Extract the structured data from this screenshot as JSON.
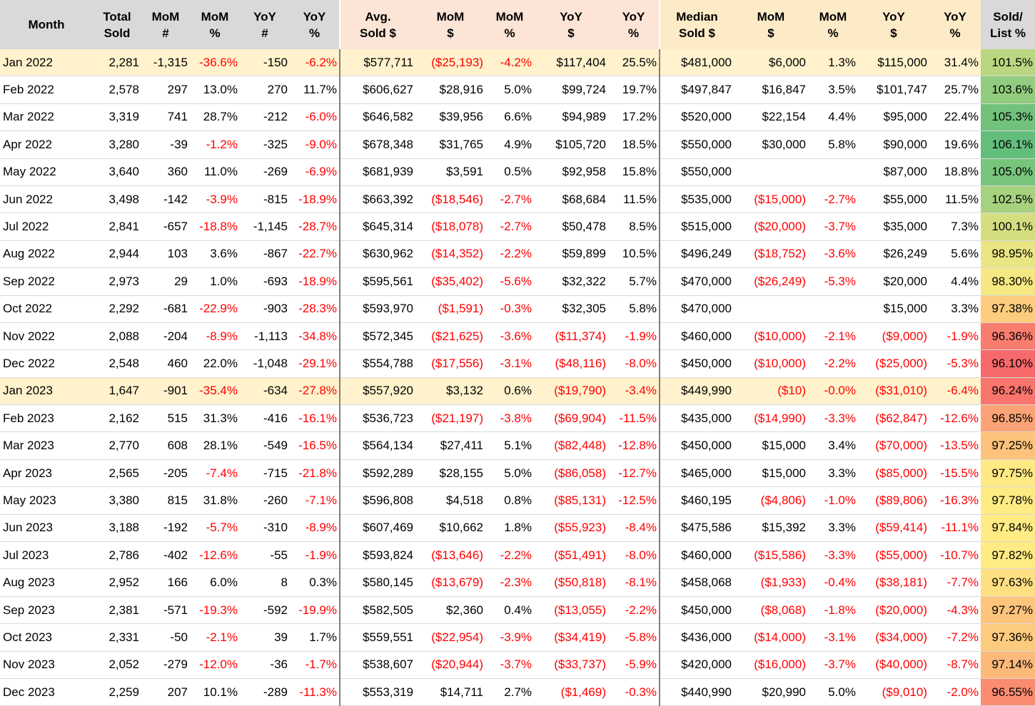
{
  "headers": [
    {
      "label": "Month",
      "group": 1
    },
    {
      "label": "Total\nSold",
      "group": 1
    },
    {
      "label": "MoM\n#",
      "group": 1
    },
    {
      "label": "MoM\n%",
      "group": 1
    },
    {
      "label": "YoY\n#",
      "group": 1
    },
    {
      "label": "YoY\n%",
      "group": 1
    },
    {
      "label": "Avg.\nSold $",
      "group": 2
    },
    {
      "label": "MoM\n$",
      "group": 2
    },
    {
      "label": "MoM\n%",
      "group": 2
    },
    {
      "label": "YoY\n$",
      "group": 2
    },
    {
      "label": "YoY\n%",
      "group": 2
    },
    {
      "label": "Median\nSold $",
      "group": 3
    },
    {
      "label": "MoM\n$",
      "group": 3
    },
    {
      "label": "MoM\n%",
      "group": 3
    },
    {
      "label": "YoY\n$",
      "group": 3
    },
    {
      "label": "YoY\n%",
      "group": 3
    },
    {
      "label": "Sold/\nList %",
      "group": 1
    }
  ],
  "colors": {
    "header_group1": "#d9d9d9",
    "header_group2": "#fce4d6",
    "header_group3": "#fdebc8",
    "january_highlight": "#fff2cc",
    "negative_text": "#ff0000",
    "sold_list_scale": [
      "#f8696b",
      "#ffeb84",
      "#63be7b"
    ]
  },
  "rows": [
    {
      "month": "Jan 2022",
      "total_sold": "2,281",
      "mom_num": "-1,315",
      "mom_pct": "-36.6%",
      "yoy_num": "-150",
      "yoy_pct": "-6.2%",
      "avg_sold": "$577,711",
      "avg_mom": "($25,193)",
      "avg_mom_pct": "-4.2%",
      "avg_yoy": "$117,404",
      "avg_yoy_pct": "25.5%",
      "median_sold": "$481,000",
      "med_mom": "$6,000",
      "med_mom_pct": "1.3%",
      "med_yoy": "$115,000",
      "med_yoy_pct": "31.4%",
      "sold_list": "101.5%",
      "sold_list_value": 101.5,
      "highlight": true
    },
    {
      "month": "Feb 2022",
      "total_sold": "2,578",
      "mom_num": "297",
      "mom_pct": "13.0%",
      "yoy_num": "270",
      "yoy_pct": "11.7%",
      "avg_sold": "$606,627",
      "avg_mom": "$28,916",
      "avg_mom_pct": "5.0%",
      "avg_yoy": "$99,724",
      "avg_yoy_pct": "19.7%",
      "median_sold": "$497,847",
      "med_mom": "$16,847",
      "med_mom_pct": "3.5%",
      "med_yoy": "$101,747",
      "med_yoy_pct": "25.7%",
      "sold_list": "103.6%",
      "sold_list_value": 103.6,
      "highlight": false
    },
    {
      "month": "Mar 2022",
      "total_sold": "3,319",
      "mom_num": "741",
      "mom_pct": "28.7%",
      "yoy_num": "-212",
      "yoy_pct": "-6.0%",
      "avg_sold": "$646,582",
      "avg_mom": "$39,956",
      "avg_mom_pct": "6.6%",
      "avg_yoy": "$94,989",
      "avg_yoy_pct": "17.2%",
      "median_sold": "$520,000",
      "med_mom": "$22,154",
      "med_mom_pct": "4.4%",
      "med_yoy": "$95,000",
      "med_yoy_pct": "22.4%",
      "sold_list": "105.3%",
      "sold_list_value": 105.3,
      "highlight": false
    },
    {
      "month": "Apr 2022",
      "total_sold": "3,280",
      "mom_num": "-39",
      "mom_pct": "-1.2%",
      "yoy_num": "-325",
      "yoy_pct": "-9.0%",
      "avg_sold": "$678,348",
      "avg_mom": "$31,765",
      "avg_mom_pct": "4.9%",
      "avg_yoy": "$105,720",
      "avg_yoy_pct": "18.5%",
      "median_sold": "$550,000",
      "med_mom": "$30,000",
      "med_mom_pct": "5.8%",
      "med_yoy": "$90,000",
      "med_yoy_pct": "19.6%",
      "sold_list": "106.1%",
      "sold_list_value": 106.1,
      "highlight": false
    },
    {
      "month": "May 2022",
      "total_sold": "3,640",
      "mom_num": "360",
      "mom_pct": "11.0%",
      "yoy_num": "-269",
      "yoy_pct": "-6.9%",
      "avg_sold": "$681,939",
      "avg_mom": "$3,591",
      "avg_mom_pct": "0.5%",
      "avg_yoy": "$92,958",
      "avg_yoy_pct": "15.8%",
      "median_sold": "$550,000",
      "med_mom": "",
      "med_mom_pct": "",
      "med_yoy": "$87,000",
      "med_yoy_pct": "18.8%",
      "sold_list": "105.0%",
      "sold_list_value": 105.0,
      "highlight": false
    },
    {
      "month": "Jun 2022",
      "total_sold": "3,498",
      "mom_num": "-142",
      "mom_pct": "-3.9%",
      "yoy_num": "-815",
      "yoy_pct": "-18.9%",
      "avg_sold": "$663,392",
      "avg_mom": "($18,546)",
      "avg_mom_pct": "-2.7%",
      "avg_yoy": "$68,684",
      "avg_yoy_pct": "11.5%",
      "median_sold": "$535,000",
      "med_mom": "($15,000)",
      "med_mom_pct": "-2.7%",
      "med_yoy": "$55,000",
      "med_yoy_pct": "11.5%",
      "sold_list": "102.5%",
      "sold_list_value": 102.5,
      "highlight": false
    },
    {
      "month": "Jul 2022",
      "total_sold": "2,841",
      "mom_num": "-657",
      "mom_pct": "-18.8%",
      "yoy_num": "-1,145",
      "yoy_pct": "-28.7%",
      "avg_sold": "$645,314",
      "avg_mom": "($18,078)",
      "avg_mom_pct": "-2.7%",
      "avg_yoy": "$50,478",
      "avg_yoy_pct": "8.5%",
      "median_sold": "$515,000",
      "med_mom": "($20,000)",
      "med_mom_pct": "-3.7%",
      "med_yoy": "$35,000",
      "med_yoy_pct": "7.3%",
      "sold_list": "100.1%",
      "sold_list_value": 100.1,
      "highlight": false
    },
    {
      "month": "Aug 2022",
      "total_sold": "2,944",
      "mom_num": "103",
      "mom_pct": "3.6%",
      "yoy_num": "-867",
      "yoy_pct": "-22.7%",
      "avg_sold": "$630,962",
      "avg_mom": "($14,352)",
      "avg_mom_pct": "-2.2%",
      "avg_yoy": "$59,899",
      "avg_yoy_pct": "10.5%",
      "median_sold": "$496,249",
      "med_mom": "($18,752)",
      "med_mom_pct": "-3.6%",
      "med_yoy": "$26,249",
      "med_yoy_pct": "5.6%",
      "sold_list": "98.95%",
      "sold_list_value": 98.95,
      "highlight": false
    },
    {
      "month": "Sep 2022",
      "total_sold": "2,973",
      "mom_num": "29",
      "mom_pct": "1.0%",
      "yoy_num": "-693",
      "yoy_pct": "-18.9%",
      "avg_sold": "$595,561",
      "avg_mom": "($35,402)",
      "avg_mom_pct": "-5.6%",
      "avg_yoy": "$32,322",
      "avg_yoy_pct": "5.7%",
      "median_sold": "$470,000",
      "med_mom": "($26,249)",
      "med_mom_pct": "-5.3%",
      "med_yoy": "$20,000",
      "med_yoy_pct": "4.4%",
      "sold_list": "98.30%",
      "sold_list_value": 98.3,
      "highlight": false
    },
    {
      "month": "Oct 2022",
      "total_sold": "2,292",
      "mom_num": "-681",
      "mom_pct": "-22.9%",
      "yoy_num": "-903",
      "yoy_pct": "-28.3%",
      "avg_sold": "$593,970",
      "avg_mom": "($1,591)",
      "avg_mom_pct": "-0.3%",
      "avg_yoy": "$32,305",
      "avg_yoy_pct": "5.8%",
      "median_sold": "$470,000",
      "med_mom": "",
      "med_mom_pct": "",
      "med_yoy": "$15,000",
      "med_yoy_pct": "3.3%",
      "sold_list": "97.38%",
      "sold_list_value": 97.38,
      "highlight": false
    },
    {
      "month": "Nov 2022",
      "total_sold": "2,088",
      "mom_num": "-204",
      "mom_pct": "-8.9%",
      "yoy_num": "-1,113",
      "yoy_pct": "-34.8%",
      "avg_sold": "$572,345",
      "avg_mom": "($21,625)",
      "avg_mom_pct": "-3.6%",
      "avg_yoy": "($11,374)",
      "avg_yoy_pct": "-1.9%",
      "median_sold": "$460,000",
      "med_mom": "($10,000)",
      "med_mom_pct": "-2.1%",
      "med_yoy": "($9,000)",
      "med_yoy_pct": "-1.9%",
      "sold_list": "96.36%",
      "sold_list_value": 96.36,
      "highlight": false
    },
    {
      "month": "Dec 2022",
      "total_sold": "2,548",
      "mom_num": "460",
      "mom_pct": "22.0%",
      "yoy_num": "-1,048",
      "yoy_pct": "-29.1%",
      "avg_sold": "$554,788",
      "avg_mom": "($17,556)",
      "avg_mom_pct": "-3.1%",
      "avg_yoy": "($48,116)",
      "avg_yoy_pct": "-8.0%",
      "median_sold": "$450,000",
      "med_mom": "($10,000)",
      "med_mom_pct": "-2.2%",
      "med_yoy": "($25,000)",
      "med_yoy_pct": "-5.3%",
      "sold_list": "96.10%",
      "sold_list_value": 96.1,
      "highlight": false
    },
    {
      "month": "Jan 2023",
      "total_sold": "1,647",
      "mom_num": "-901",
      "mom_pct": "-35.4%",
      "yoy_num": "-634",
      "yoy_pct": "-27.8%",
      "avg_sold": "$557,920",
      "avg_mom": "$3,132",
      "avg_mom_pct": "0.6%",
      "avg_yoy": "($19,790)",
      "avg_yoy_pct": "-3.4%",
      "median_sold": "$449,990",
      "med_mom": "($10)",
      "med_mom_pct": "-0.0%",
      "med_yoy": "($31,010)",
      "med_yoy_pct": "-6.4%",
      "sold_list": "96.24%",
      "sold_list_value": 96.24,
      "highlight": true
    },
    {
      "month": "Feb 2023",
      "total_sold": "2,162",
      "mom_num": "515",
      "mom_pct": "31.3%",
      "yoy_num": "-416",
      "yoy_pct": "-16.1%",
      "avg_sold": "$536,723",
      "avg_mom": "($21,197)",
      "avg_mom_pct": "-3.8%",
      "avg_yoy": "($69,904)",
      "avg_yoy_pct": "-11.5%",
      "median_sold": "$435,000",
      "med_mom": "($14,990)",
      "med_mom_pct": "-3.3%",
      "med_yoy": "($62,847)",
      "med_yoy_pct": "-12.6%",
      "sold_list": "96.85%",
      "sold_list_value": 96.85,
      "highlight": false
    },
    {
      "month": "Mar 2023",
      "total_sold": "2,770",
      "mom_num": "608",
      "mom_pct": "28.1%",
      "yoy_num": "-549",
      "yoy_pct": "-16.5%",
      "avg_sold": "$564,134",
      "avg_mom": "$27,411",
      "avg_mom_pct": "5.1%",
      "avg_yoy": "($82,448)",
      "avg_yoy_pct": "-12.8%",
      "median_sold": "$450,000",
      "med_mom": "$15,000",
      "med_mom_pct": "3.4%",
      "med_yoy": "($70,000)",
      "med_yoy_pct": "-13.5%",
      "sold_list": "97.25%",
      "sold_list_value": 97.25,
      "highlight": false
    },
    {
      "month": "Apr 2023",
      "total_sold": "2,565",
      "mom_num": "-205",
      "mom_pct": "-7.4%",
      "yoy_num": "-715",
      "yoy_pct": "-21.8%",
      "avg_sold": "$592,289",
      "avg_mom": "$28,155",
      "avg_mom_pct": "5.0%",
      "avg_yoy": "($86,058)",
      "avg_yoy_pct": "-12.7%",
      "median_sold": "$465,000",
      "med_mom": "$15,000",
      "med_mom_pct": "3.3%",
      "med_yoy": "($85,000)",
      "med_yoy_pct": "-15.5%",
      "sold_list": "97.75%",
      "sold_list_value": 97.75,
      "highlight": false
    },
    {
      "month": "May 2023",
      "total_sold": "3,380",
      "mom_num": "815",
      "mom_pct": "31.8%",
      "yoy_num": "-260",
      "yoy_pct": "-7.1%",
      "avg_sold": "$596,808",
      "avg_mom": "$4,518",
      "avg_mom_pct": "0.8%",
      "avg_yoy": "($85,131)",
      "avg_yoy_pct": "-12.5%",
      "median_sold": "$460,195",
      "med_mom": "($4,806)",
      "med_mom_pct": "-1.0%",
      "med_yoy": "($89,806)",
      "med_yoy_pct": "-16.3%",
      "sold_list": "97.78%",
      "sold_list_value": 97.78,
      "highlight": false
    },
    {
      "month": "Jun 2023",
      "total_sold": "3,188",
      "mom_num": "-192",
      "mom_pct": "-5.7%",
      "yoy_num": "-310",
      "yoy_pct": "-8.9%",
      "avg_sold": "$607,469",
      "avg_mom": "$10,662",
      "avg_mom_pct": "1.8%",
      "avg_yoy": "($55,923)",
      "avg_yoy_pct": "-8.4%",
      "median_sold": "$475,586",
      "med_mom": "$15,392",
      "med_mom_pct": "3.3%",
      "med_yoy": "($59,414)",
      "med_yoy_pct": "-11.1%",
      "sold_list": "97.84%",
      "sold_list_value": 97.84,
      "highlight": false
    },
    {
      "month": "Jul 2023",
      "total_sold": "2,786",
      "mom_num": "-402",
      "mom_pct": "-12.6%",
      "yoy_num": "-55",
      "yoy_pct": "-1.9%",
      "avg_sold": "$593,824",
      "avg_mom": "($13,646)",
      "avg_mom_pct": "-2.2%",
      "avg_yoy": "($51,491)",
      "avg_yoy_pct": "-8.0%",
      "median_sold": "$460,000",
      "med_mom": "($15,586)",
      "med_mom_pct": "-3.3%",
      "med_yoy": "($55,000)",
      "med_yoy_pct": "-10.7%",
      "sold_list": "97.82%",
      "sold_list_value": 97.82,
      "highlight": false
    },
    {
      "month": "Aug 2023",
      "total_sold": "2,952",
      "mom_num": "166",
      "mom_pct": "6.0%",
      "yoy_num": "8",
      "yoy_pct": "0.3%",
      "avg_sold": "$580,145",
      "avg_mom": "($13,679)",
      "avg_mom_pct": "-2.3%",
      "avg_yoy": "($50,818)",
      "avg_yoy_pct": "-8.1%",
      "median_sold": "$458,068",
      "med_mom": "($1,933)",
      "med_mom_pct": "-0.4%",
      "med_yoy": "($38,181)",
      "med_yoy_pct": "-7.7%",
      "sold_list": "97.63%",
      "sold_list_value": 97.63,
      "highlight": false
    },
    {
      "month": "Sep 2023",
      "total_sold": "2,381",
      "mom_num": "-571",
      "mom_pct": "-19.3%",
      "yoy_num": "-592",
      "yoy_pct": "-19.9%",
      "avg_sold": "$582,505",
      "avg_mom": "$2,360",
      "avg_mom_pct": "0.4%",
      "avg_yoy": "($13,055)",
      "avg_yoy_pct": "-2.2%",
      "median_sold": "$450,000",
      "med_mom": "($8,068)",
      "med_mom_pct": "-1.8%",
      "med_yoy": "($20,000)",
      "med_yoy_pct": "-4.3%",
      "sold_list": "97.27%",
      "sold_list_value": 97.27,
      "highlight": false
    },
    {
      "month": "Oct 2023",
      "total_sold": "2,331",
      "mom_num": "-50",
      "mom_pct": "-2.1%",
      "yoy_num": "39",
      "yoy_pct": "1.7%",
      "avg_sold": "$559,551",
      "avg_mom": "($22,954)",
      "avg_mom_pct": "-3.9%",
      "avg_yoy": "($34,419)",
      "avg_yoy_pct": "-5.8%",
      "median_sold": "$436,000",
      "med_mom": "($14,000)",
      "med_mom_pct": "-3.1%",
      "med_yoy": "($34,000)",
      "med_yoy_pct": "-7.2%",
      "sold_list": "97.36%",
      "sold_list_value": 97.36,
      "highlight": false
    },
    {
      "month": "Nov 2023",
      "total_sold": "2,052",
      "mom_num": "-279",
      "mom_pct": "-12.0%",
      "yoy_num": "-36",
      "yoy_pct": "-1.7%",
      "avg_sold": "$538,607",
      "avg_mom": "($20,944)",
      "avg_mom_pct": "-3.7%",
      "avg_yoy": "($33,737)",
      "avg_yoy_pct": "-5.9%",
      "median_sold": "$420,000",
      "med_mom": "($16,000)",
      "med_mom_pct": "-3.7%",
      "med_yoy": "($40,000)",
      "med_yoy_pct": "-8.7%",
      "sold_list": "97.14%",
      "sold_list_value": 97.14,
      "highlight": false
    },
    {
      "month": "Dec 2023",
      "total_sold": "2,259",
      "mom_num": "207",
      "mom_pct": "10.1%",
      "yoy_num": "-289",
      "yoy_pct": "-11.3%",
      "avg_sold": "$553,319",
      "avg_mom": "$14,711",
      "avg_mom_pct": "2.7%",
      "avg_yoy": "($1,469)",
      "avg_yoy_pct": "-0.3%",
      "median_sold": "$440,990",
      "med_mom": "$20,990",
      "med_mom_pct": "5.0%",
      "med_yoy": "($9,010)",
      "med_yoy_pct": "-2.0%",
      "sold_list": "96.55%",
      "sold_list_value": 96.55,
      "highlight": false
    }
  ]
}
